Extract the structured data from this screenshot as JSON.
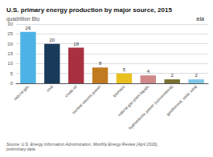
{
  "chart_data": {
    "type": "bar",
    "title": "U.S. primary energy production by major source, 2015",
    "subtitle": "quadrillion Btu",
    "categories": [
      "natural gas",
      "coal",
      "crude oil",
      "nuclear electric power",
      "biomass",
      "natural gas plant liquids",
      "hydroelectric power (conventional)",
      "geothermal, solar, wind"
    ],
    "values": [
      26,
      20,
      18,
      8,
      5,
      4,
      2,
      2
    ],
    "colors": [
      "#4db3e6",
      "#1a3a5c",
      "#a83040",
      "#c07a20",
      "#e8c020",
      "#d08888",
      "#7a7030",
      "#80c8e8"
    ],
    "ylim": [
      0,
      30
    ],
    "yticks": [
      0,
      5,
      10,
      15,
      20,
      25,
      30
    ],
    "grid": true,
    "data_labels": true,
    "annotations": [
      "Source: U.S. Energy Information Administration, Monthly Energy Review (April 2016),\npreliminary data",
      "eia"
    ]
  }
}
